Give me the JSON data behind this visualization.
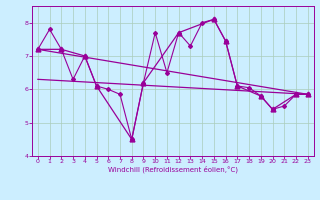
{
  "xlabel": "Windchill (Refroidissement éolien,°C)",
  "background_color": "#cceeff",
  "grid_color": "#aaccbb",
  "line_color": "#990099",
  "xlim": [
    -0.5,
    23.5
  ],
  "ylim": [
    4.0,
    8.5
  ],
  "yticks": [
    4,
    5,
    6,
    7,
    8
  ],
  "xticks": [
    0,
    1,
    2,
    3,
    4,
    5,
    6,
    7,
    8,
    9,
    10,
    11,
    12,
    13,
    14,
    15,
    16,
    17,
    18,
    19,
    20,
    21,
    22,
    23
  ],
  "hourly_x": [
    0,
    1,
    2,
    3,
    4,
    5,
    6,
    7,
    8,
    9,
    10,
    11,
    12,
    13,
    14,
    15,
    16,
    17,
    18,
    19,
    20,
    21,
    22,
    23
  ],
  "hourly_y": [
    7.2,
    7.8,
    7.2,
    6.3,
    7.0,
    6.1,
    6.0,
    5.85,
    4.5,
    6.2,
    7.7,
    6.5,
    7.7,
    7.3,
    8.0,
    8.1,
    7.45,
    6.1,
    6.05,
    5.8,
    5.4,
    5.5,
    5.85,
    5.85
  ],
  "sparse_x": [
    0,
    2,
    4,
    5,
    8,
    9,
    12,
    15,
    16,
    17,
    19,
    20,
    22,
    23
  ],
  "sparse_y": [
    7.2,
    7.2,
    7.0,
    6.1,
    4.5,
    6.2,
    7.7,
    8.1,
    7.45,
    6.1,
    5.8,
    5.4,
    5.85,
    5.85
  ],
  "trend1_x": [
    0,
    23
  ],
  "trend1_y": [
    7.2,
    5.85
  ],
  "trend2_x": [
    0,
    23
  ],
  "trend2_y": [
    6.3,
    5.85
  ]
}
